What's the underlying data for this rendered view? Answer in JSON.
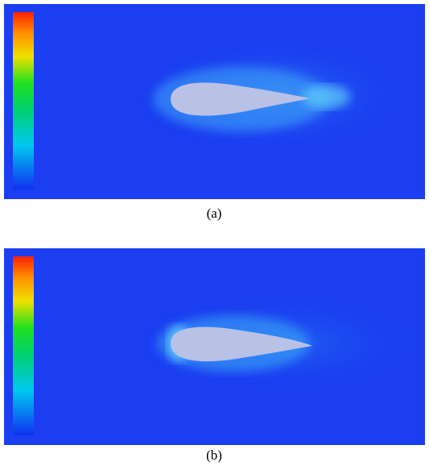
{
  "figures": [
    {
      "caption": "(a)"
    },
    {
      "caption": "(b)"
    }
  ]
}
